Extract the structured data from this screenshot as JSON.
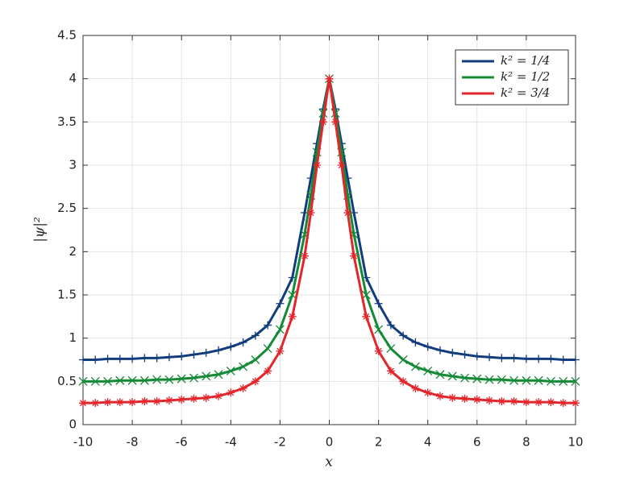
{
  "chart_data": {
    "type": "line",
    "xlabel": "x",
    "ylabel": "|ψ|²",
    "x": [
      -10,
      -9.5,
      -9,
      -8.5,
      -8,
      -7.5,
      -7,
      -6.5,
      -6,
      -5.5,
      -5,
      -4.5,
      -4,
      -3.5,
      -3,
      -2.5,
      -2,
      -1.5,
      -1,
      -0.75,
      -0.5,
      -0.25,
      0,
      0.25,
      0.5,
      0.75,
      1,
      1.5,
      2,
      2.5,
      3,
      3.5,
      4,
      4.5,
      5,
      5.5,
      6,
      6.5,
      7,
      7.5,
      8,
      8.5,
      9,
      9.5,
      10
    ],
    "series": [
      {
        "name": "k² = 1/4",
        "color": "#123d7c",
        "marker": "plus",
        "values": [
          0.75,
          0.75,
          0.76,
          0.76,
          0.76,
          0.77,
          0.77,
          0.78,
          0.79,
          0.81,
          0.83,
          0.86,
          0.9,
          0.95,
          1.03,
          1.15,
          1.4,
          1.7,
          2.45,
          2.85,
          3.25,
          3.65,
          4,
          3.65,
          3.25,
          2.85,
          2.45,
          1.7,
          1.4,
          1.15,
          1.03,
          0.95,
          0.9,
          0.86,
          0.83,
          0.81,
          0.79,
          0.78,
          0.77,
          0.77,
          0.76,
          0.76,
          0.76,
          0.75,
          0.75
        ]
      },
      {
        "name": "k² = 1/2",
        "color": "#148a36",
        "marker": "cross",
        "values": [
          0.5,
          0.5,
          0.5,
          0.51,
          0.51,
          0.51,
          0.52,
          0.52,
          0.53,
          0.54,
          0.56,
          0.58,
          0.62,
          0.67,
          0.75,
          0.88,
          1.1,
          1.5,
          2.2,
          2.65,
          3.15,
          3.6,
          4,
          3.6,
          3.15,
          2.65,
          2.2,
          1.5,
          1.1,
          0.88,
          0.75,
          0.67,
          0.62,
          0.58,
          0.56,
          0.54,
          0.53,
          0.52,
          0.52,
          0.51,
          0.51,
          0.51,
          0.5,
          0.5,
          0.5
        ]
      },
      {
        "name": "k² = 3/4",
        "color": "#e3262c",
        "marker": "star",
        "values": [
          0.25,
          0.25,
          0.26,
          0.26,
          0.26,
          0.27,
          0.27,
          0.28,
          0.29,
          0.3,
          0.31,
          0.33,
          0.37,
          0.42,
          0.5,
          0.62,
          0.85,
          1.25,
          1.95,
          2.45,
          3.0,
          3.5,
          4,
          3.5,
          3.0,
          2.45,
          1.95,
          1.25,
          0.85,
          0.62,
          0.5,
          0.42,
          0.37,
          0.33,
          0.31,
          0.3,
          0.29,
          0.28,
          0.27,
          0.27,
          0.26,
          0.26,
          0.26,
          0.25,
          0.25
        ]
      }
    ],
    "xlim": [
      -10,
      10
    ],
    "xticks": [
      -10,
      -8,
      -6,
      -4,
      -2,
      0,
      2,
      4,
      6,
      8,
      10
    ],
    "ylim": [
      0,
      4.5
    ],
    "yticks": [
      0,
      0.5,
      1,
      1.5,
      2,
      2.5,
      3,
      3.5,
      4,
      4.5
    ],
    "grid": true,
    "legend": "upper-right"
  }
}
